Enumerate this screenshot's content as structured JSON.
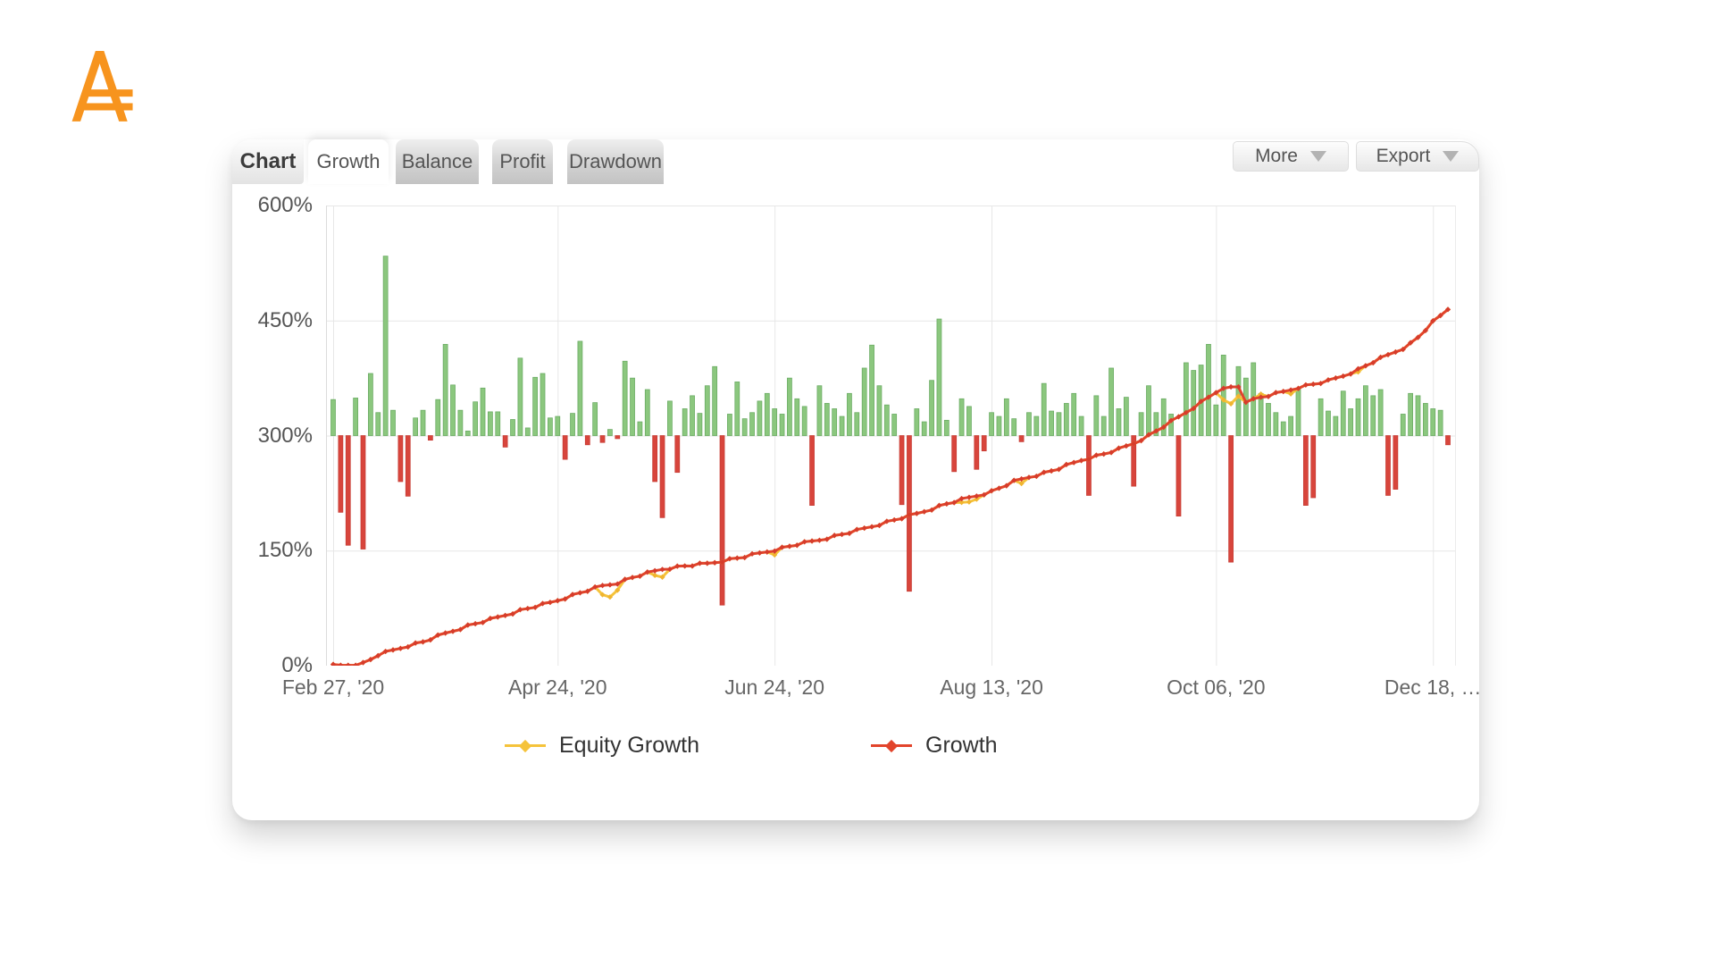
{
  "logo": {
    "name": "A-logo",
    "color": "#F7941E"
  },
  "tabs": {
    "section_label": "Chart",
    "items": [
      {
        "label": "Growth",
        "active": true
      },
      {
        "label": "Balance",
        "active": false
      },
      {
        "label": "Profit",
        "active": false
      },
      {
        "label": "Drawdown",
        "active": false
      }
    ]
  },
  "actions": [
    {
      "label": "More"
    },
    {
      "label": "Export"
    }
  ],
  "chart_data": {
    "type": "line+bar",
    "title": "",
    "legend_position": "bottom",
    "grid": true,
    "y_axis": {
      "unit": "%",
      "min": 0,
      "max": 600,
      "tick_labels": [
        "600%",
        "450%",
        "300%",
        "150%",
        "0%"
      ],
      "tick_values": [
        600,
        450,
        300,
        150,
        0
      ]
    },
    "x_axis": {
      "tick_labels": [
        "Feb 27, '20",
        "Apr 24, '20",
        "Jun 24, '20",
        "Aug 13, '20",
        "Oct 06, '20",
        "Dec 18, …"
      ],
      "tick_indices": [
        0,
        30,
        59,
        88,
        118,
        147
      ]
    },
    "bars": {
      "name": "Daily profit/loss (plotted from 300% baseline)",
      "baseline_pct": 300,
      "positive_color": "#8bc77e",
      "positive_edge": "#69aa62",
      "negative_color": "#d8453c",
      "negative_edge": "#c63c34",
      "values": [
        47,
        -100,
        -143,
        49,
        -148,
        81,
        30,
        234,
        33,
        -60,
        -79,
        23,
        33,
        -6,
        47,
        119,
        66,
        33,
        6,
        44,
        62,
        31,
        31,
        -15,
        21,
        101,
        10,
        76,
        81,
        23,
        25,
        -31,
        29,
        123,
        -12,
        43,
        -9,
        8,
        -4,
        97,
        75,
        18,
        60,
        -60,
        -107,
        45,
        -48,
        35,
        52,
        29,
        65,
        90,
        -221,
        28,
        70,
        22,
        30,
        45,
        55,
        35,
        28,
        75,
        48,
        38,
        -91,
        65,
        42,
        35,
        25,
        55,
        30,
        88,
        118,
        65,
        40,
        28,
        -90,
        -203,
        35,
        18,
        72,
        152,
        20,
        -47,
        48,
        38,
        -44,
        -20,
        30,
        25,
        48,
        22,
        -8,
        30,
        25,
        68,
        32,
        30,
        42,
        55,
        25,
        -78,
        52,
        25,
        88,
        35,
        50,
        -66,
        30,
        65,
        30,
        48,
        28,
        -105,
        95,
        85,
        92,
        119,
        40,
        105,
        -165,
        90,
        75,
        95,
        55,
        42,
        30,
        18,
        25,
        62,
        -91,
        -81,
        48,
        32,
        25,
        58,
        35,
        48,
        65,
        52,
        60,
        -78,
        -70,
        28,
        55,
        52,
        42,
        35,
        33,
        -12
      ]
    },
    "series": [
      {
        "name": "Equity Growth",
        "color": "#f5c33b",
        "marker_color": "#f0b52f",
        "derived_from": "Growth",
        "dips_from_growth": [
          [
            36,
            -12
          ],
          [
            37,
            -16
          ],
          [
            38,
            -8
          ],
          [
            43,
            -6
          ],
          [
            44,
            -10
          ],
          [
            59,
            -5
          ],
          [
            84,
            -5
          ],
          [
            85,
            -6
          ],
          [
            86,
            -4
          ],
          [
            92,
            -6
          ],
          [
            119,
            -15
          ],
          [
            120,
            -22
          ],
          [
            121,
            -12
          ],
          [
            124,
            4
          ],
          [
            128,
            -5
          ],
          [
            137,
            -4
          ]
        ]
      },
      {
        "name": "Growth",
        "color": "#e2442b",
        "marker_color": "#d63c2c",
        "anchors": [
          [
            0,
            0
          ],
          [
            1,
            0
          ],
          [
            2,
            1
          ],
          [
            3,
            2
          ],
          [
            4,
            3
          ],
          [
            5,
            8
          ],
          [
            6,
            14
          ],
          [
            8,
            20
          ],
          [
            10,
            26
          ],
          [
            12,
            31
          ],
          [
            15,
            42
          ],
          [
            18,
            52
          ],
          [
            21,
            60
          ],
          [
            25,
            72
          ],
          [
            29,
            82
          ],
          [
            33,
            95
          ],
          [
            36,
            104
          ],
          [
            38,
            108
          ],
          [
            40,
            115
          ],
          [
            44,
            126
          ],
          [
            47,
            130
          ],
          [
            50,
            133
          ],
          [
            55,
            142
          ],
          [
            59,
            151
          ],
          [
            62,
            158
          ],
          [
            65,
            164
          ],
          [
            70,
            176
          ],
          [
            75,
            190
          ],
          [
            78,
            198
          ],
          [
            82,
            211
          ],
          [
            85,
            219
          ],
          [
            88,
            227
          ],
          [
            91,
            240
          ],
          [
            93,
            246
          ],
          [
            95,
            251
          ],
          [
            97,
            257
          ],
          [
            100,
            268
          ],
          [
            103,
            276
          ],
          [
            105,
            282
          ],
          [
            107,
            290
          ],
          [
            109,
            300
          ],
          [
            111,
            312
          ],
          [
            113,
            324
          ],
          [
            115,
            337
          ],
          [
            117,
            350
          ],
          [
            118,
            357
          ],
          [
            119,
            360
          ],
          [
            120,
            363
          ],
          [
            121,
            364
          ],
          [
            122,
            345
          ],
          [
            123,
            347
          ],
          [
            124,
            350
          ],
          [
            125,
            352
          ],
          [
            127,
            357
          ],
          [
            129,
            363
          ],
          [
            131,
            367
          ],
          [
            133,
            371
          ],
          [
            135,
            378
          ],
          [
            137,
            386
          ],
          [
            139,
            396
          ],
          [
            141,
            405
          ],
          [
            143,
            414
          ],
          [
            144,
            420
          ],
          [
            145,
            428
          ],
          [
            146,
            438
          ],
          [
            147,
            448
          ],
          [
            148,
            456
          ],
          [
            149,
            465
          ]
        ]
      }
    ],
    "grid_color": "#e7e7e7",
    "zero_line_color": "#c8c8c8"
  }
}
